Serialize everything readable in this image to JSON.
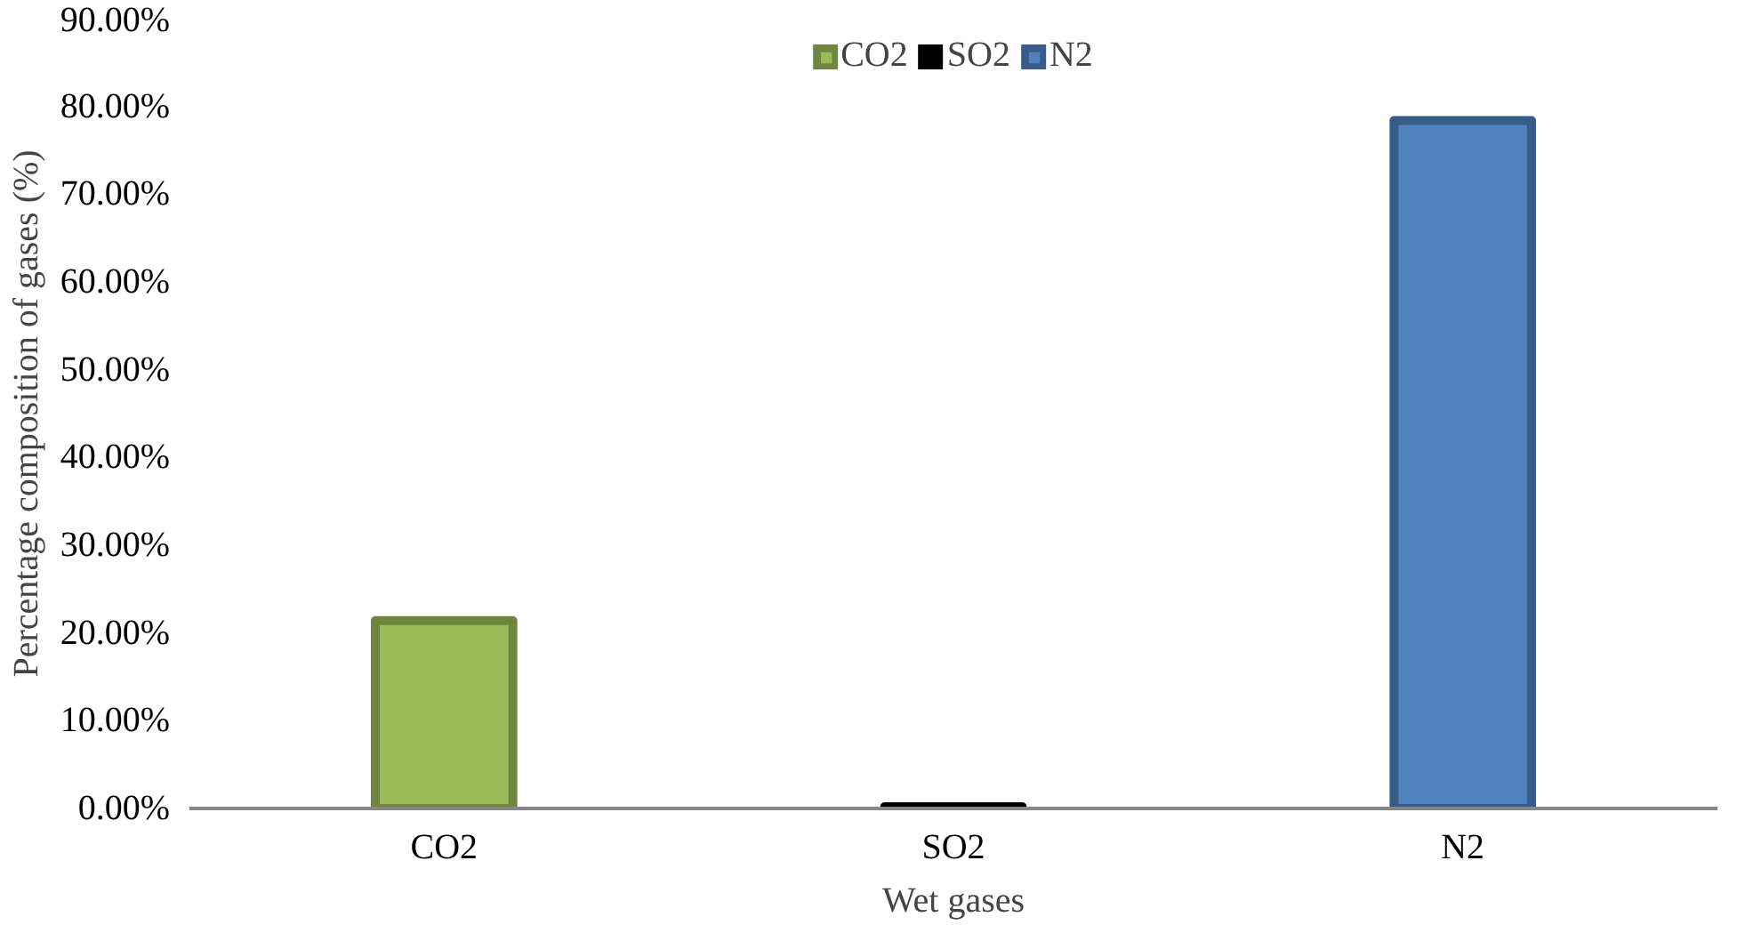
{
  "chart_data": {
    "type": "bar",
    "xlabel": "Wet gases",
    "ylabel": "Percentage composition of gases (%)",
    "categories": [
      "CO2",
      "SO2",
      "N2"
    ],
    "series": [
      {
        "name": "CO2",
        "color": "#9bbb59",
        "values": [
          21.4,
          null,
          null
        ]
      },
      {
        "name": "SO2",
        "color": "#000000",
        "values": [
          null,
          0.2,
          null
        ]
      },
      {
        "name": "N2",
        "color": "#4f81bd",
        "values": [
          null,
          null,
          78.4
        ]
      }
    ],
    "ylim": [
      0,
      90
    ],
    "yticks": [
      {
        "value": 0,
        "label": "0.00%"
      },
      {
        "value": 10,
        "label": "10.00%"
      },
      {
        "value": 20,
        "label": "20.00%"
      },
      {
        "value": 30,
        "label": "30.00%"
      },
      {
        "value": 40,
        "label": "40.00%"
      },
      {
        "value": 50,
        "label": "50.00%"
      },
      {
        "value": 60,
        "label": "60.00%"
      },
      {
        "value": 70,
        "label": "70.00%"
      },
      {
        "value": 80,
        "label": "80.00%"
      },
      {
        "value": 90,
        "label": "90.00%"
      }
    ],
    "grid": false,
    "legend": "top"
  }
}
